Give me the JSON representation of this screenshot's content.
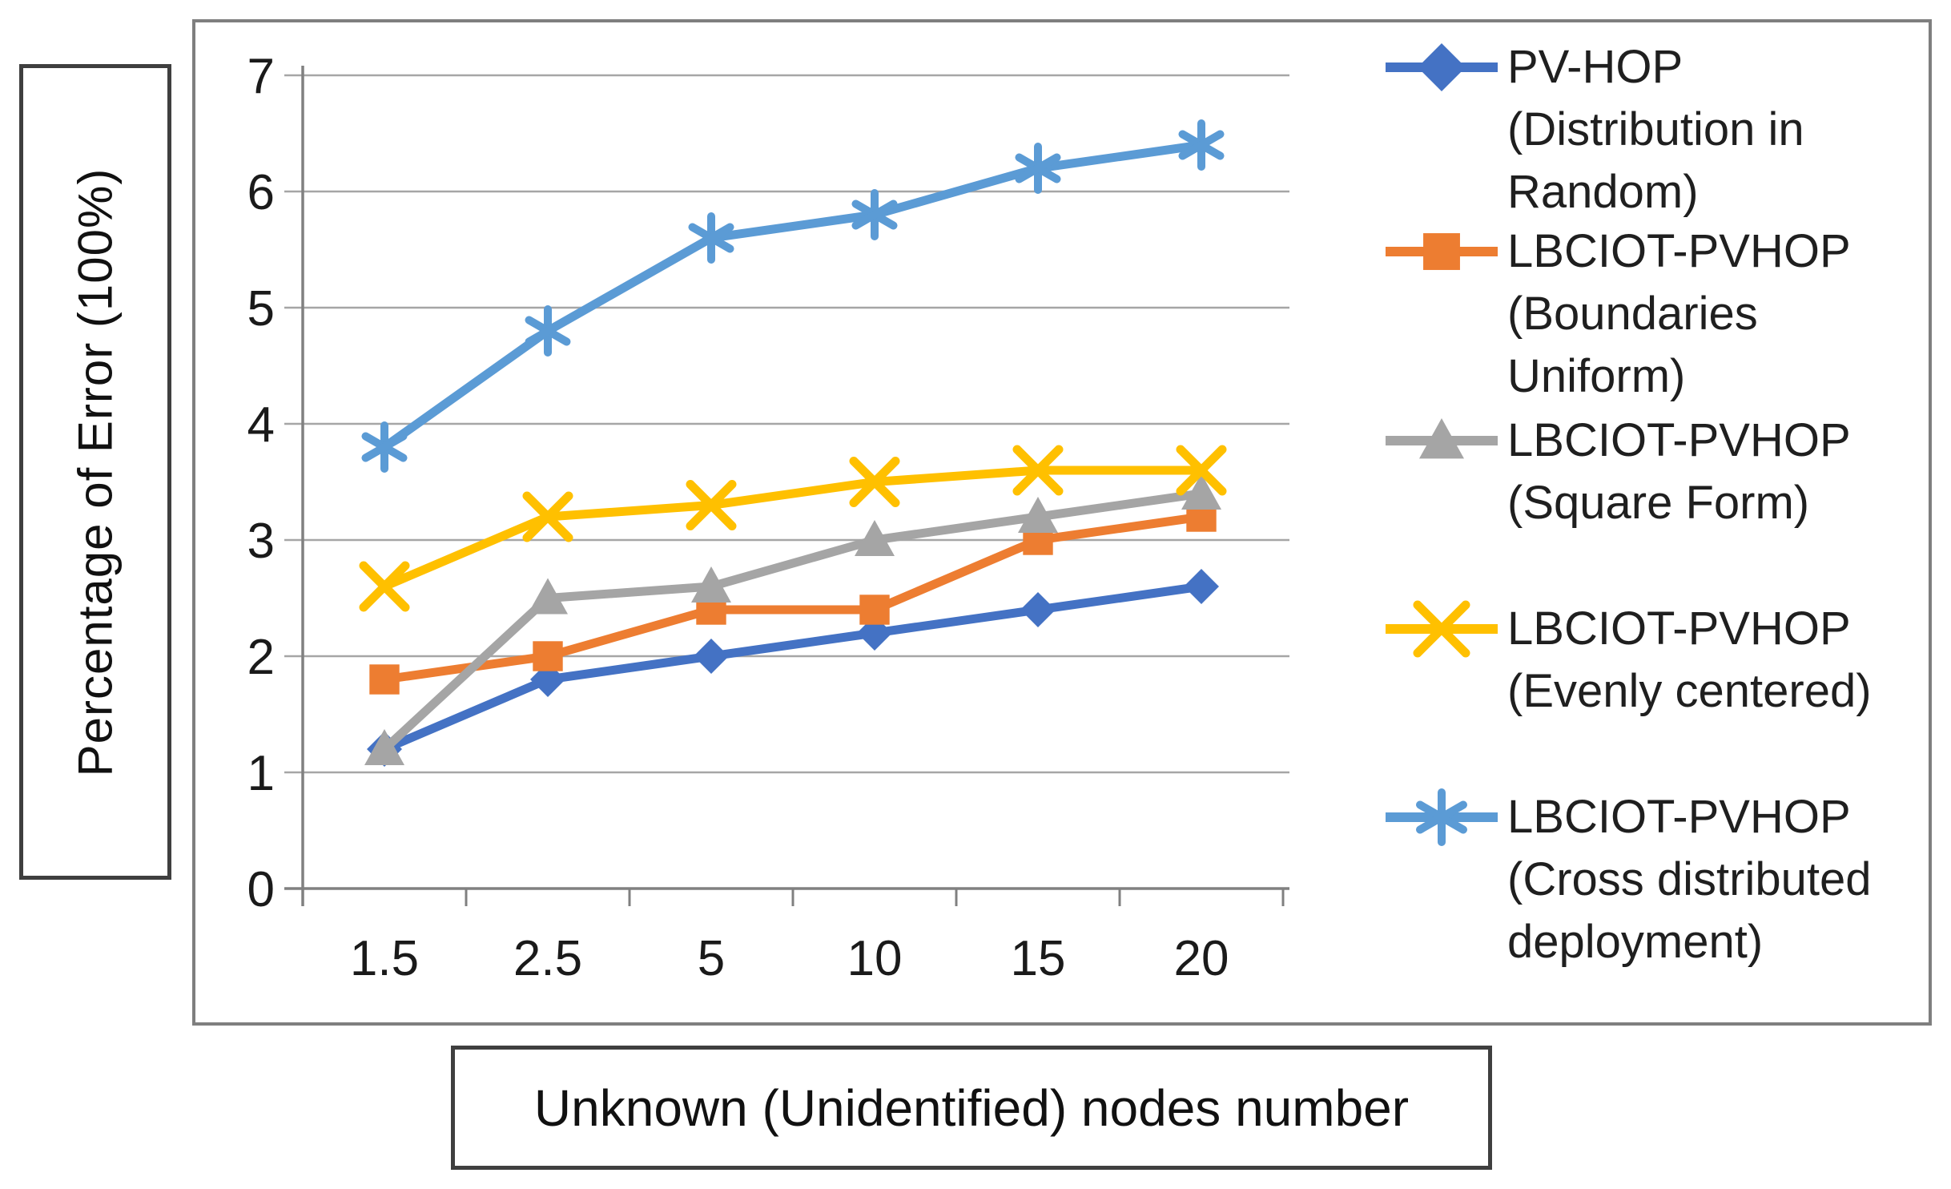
{
  "figure": {
    "y_axis_label": "Percentage of Error (100%)",
    "x_axis_title": "Unknown (Unidentified) nodes number"
  },
  "chart_data": {
    "type": "line",
    "title": "",
    "xlabel": "Unknown (Unidentified) nodes number",
    "ylabel": "Percentage of Error (100%)",
    "categories": [
      "1.5",
      "2.5",
      "5",
      "10",
      "15",
      "20"
    ],
    "y_ticks": [
      "0",
      "1",
      "2",
      "3",
      "4",
      "5",
      "6",
      "7"
    ],
    "ylim": [
      0,
      7
    ],
    "grid": "horizontal-only",
    "legend_position": "right",
    "series": [
      {
        "name": "PV-HOP (Distribution in Random)",
        "legend_lines": [
          "PV-HOP",
          "(Distribution in",
          "Random)"
        ],
        "color": "#4472C4",
        "marker": "diamond",
        "values": [
          1.2,
          1.8,
          2.0,
          2.2,
          2.4,
          2.6
        ]
      },
      {
        "name": "LBCIOT-PVHOP (Boundaries Uniform)",
        "legend_lines": [
          "LBCIOT-PVHOP",
          "(Boundaries",
          "Uniform)"
        ],
        "color": "#ED7D31",
        "marker": "square",
        "values": [
          1.8,
          2.0,
          2.4,
          2.4,
          3.0,
          3.2
        ]
      },
      {
        "name": "LBCIOT-PVHOP (Square Form)",
        "legend_lines": [
          "LBCIOT-PVHOP",
          "(Square Form)"
        ],
        "color": "#A5A5A5",
        "marker": "triangle",
        "values": [
          1.2,
          2.5,
          2.6,
          3.0,
          3.2,
          3.4
        ]
      },
      {
        "name": "LBCIOT-PVHOP (Evenly centered)",
        "legend_lines": [
          "LBCIOT-PVHOP",
          "(Evenly centered)"
        ],
        "color": "#FFC000",
        "marker": "x",
        "values": [
          2.6,
          3.2,
          3.3,
          3.5,
          3.6,
          3.6
        ]
      },
      {
        "name": "LBCIOT-PVHOP (Cross distributed deployment)",
        "legend_lines": [
          "LBCIOT-PVHOP",
          "(Cross distributed",
          "deployment)"
        ],
        "color": "#5B9BD5",
        "marker": "asterisk",
        "values": [
          3.8,
          4.8,
          5.6,
          5.8,
          6.2,
          6.4
        ]
      }
    ],
    "style": {
      "gridline_color": "#A6A6A6",
      "axis_color": "#808080",
      "text_color": "#1a1a1a",
      "line_width": 11
    }
  }
}
